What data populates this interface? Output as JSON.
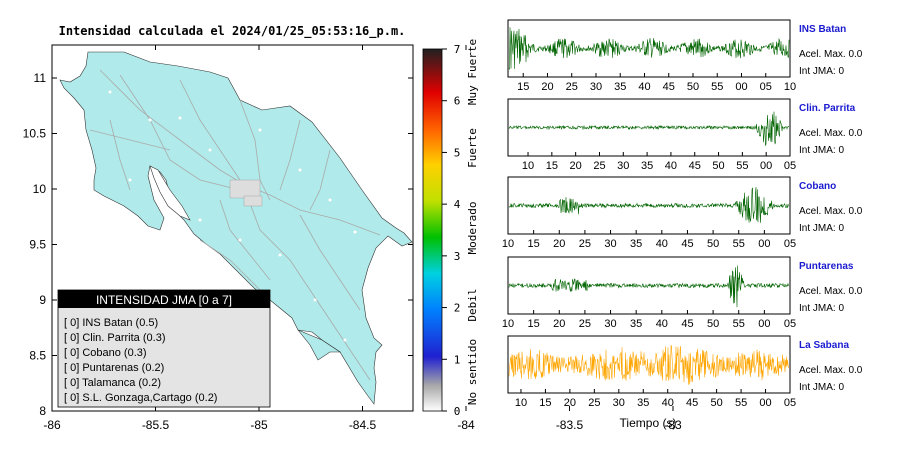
{
  "map": {
    "title": "Intensidad calculada el 2024/01/25_05:53:16_p.m.",
    "x_ticks": [
      "-86",
      "-85.5",
      "-85",
      "-84.5",
      "-84",
      "-83.5",
      "-83"
    ],
    "y_ticks": [
      "11",
      "10.5",
      "10",
      "9.5",
      "9",
      "8.5",
      "8"
    ],
    "colors": {
      "land": "#b0eaea",
      "sea": "#ffffff",
      "roads": "#aaaaaa"
    },
    "legend": {
      "title": "INTENSIDAD JMA [0 a 7]",
      "items": [
        "[ 0]  INS Batan (0.5)",
        "[ 0]  Clin. Parrita (0.3)",
        "[ 0]  Cobano (0.3)",
        "[ 0]  Puntarenas (0.2)",
        "[ 0]  Talamanca (0.2)",
        "[ 0]  S.L. Gonzaga,Cartago (0.2)"
      ]
    }
  },
  "colorbar": {
    "ticks": [
      "0",
      "1",
      "2",
      "3",
      "4",
      "5",
      "6",
      "7"
    ],
    "labels": [
      "No sentido",
      "Debil",
      "Moderado",
      "Fuerte",
      "Muy Fuerte"
    ]
  },
  "chart_data": {
    "type": "line",
    "xlabel": "Tiempo (s)",
    "panels": [
      {
        "station": "INS Batan",
        "accel": "Acel. Max. 0.0",
        "int": "Int JMA: 0",
        "color": "#006400",
        "ticks": [
          "15",
          "20",
          "25",
          "30",
          "35",
          "40",
          "45",
          "50",
          "55",
          "00",
          "05",
          "10"
        ],
        "first_tick_frac": 0.054
      },
      {
        "station": "Clin. Parrita",
        "accel": "Acel. Max. 0.0",
        "int": "Int JMA: 0",
        "color": "#006400",
        "ticks": [
          "10",
          "15",
          "20",
          "25",
          "30",
          "35",
          "40",
          "45",
          "50",
          "55",
          "00",
          "05"
        ],
        "first_tick_frac": 0.071
      },
      {
        "station": "Cobano",
        "accel": "Acel. Max. 0.0",
        "int": "Int JMA: 0",
        "color": "#006400",
        "ticks": [
          "10",
          "15",
          "20",
          "25",
          "30",
          "35",
          "40",
          "45",
          "50",
          "55",
          "00",
          "05"
        ],
        "first_tick_frac": 0.0
      },
      {
        "station": "Puntarenas",
        "accel": "Acel. Max. 0.0",
        "int": "Int JMA: 0",
        "color": "#006400",
        "ticks": [
          "10",
          "15",
          "20",
          "25",
          "30",
          "35",
          "40",
          "45",
          "50",
          "55",
          "00",
          "05"
        ],
        "first_tick_frac": 0.0
      },
      {
        "station": "La Sabana",
        "accel": "Acel. Max. 0.0",
        "int": "Int JMA: 0",
        "color": "#ffa500",
        "ticks": [
          "10",
          "15",
          "20",
          "25",
          "30",
          "35",
          "40",
          "45",
          "50",
          "55",
          "00",
          "05"
        ],
        "first_tick_frac": 0.046
      }
    ]
  }
}
